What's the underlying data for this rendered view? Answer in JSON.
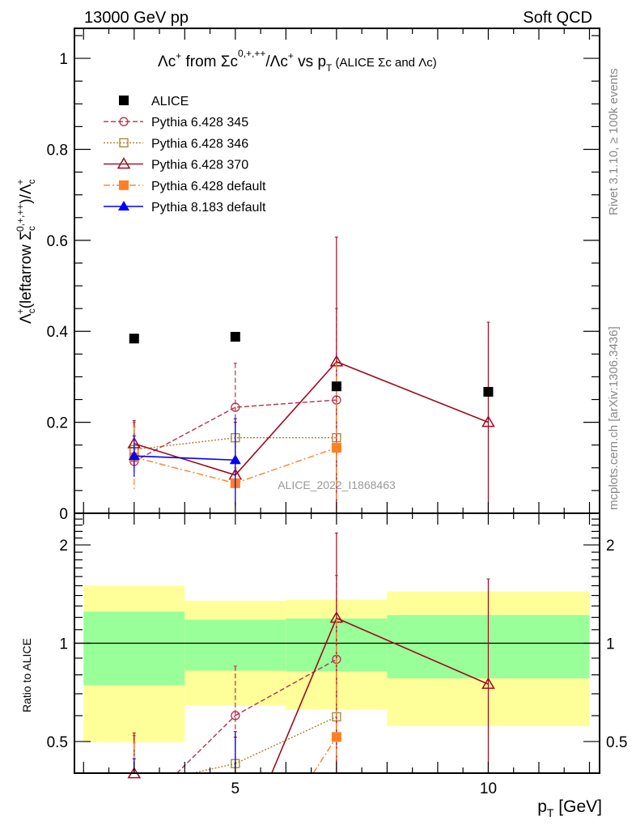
{
  "header": {
    "energy": "13000 GeV pp",
    "category": "Soft QCD"
  },
  "side": {
    "rivet": "Rivet 3.1.10, ≥ 100k events",
    "mcplots": "mcplots.cern.ch [arXiv:1306.3436]"
  },
  "watermark": "ALICE_2022_I1868463",
  "title_parts": {
    "a": "Λc",
    "a_sup": "+",
    "b": " from Σc",
    "b_sup": "0,+,++",
    "c": "/Λc",
    "c_sup": "+",
    "d": " vs p",
    "d_sub": "T",
    "e": " (ALICE Σc and Λc)"
  },
  "ylabel_parts": {
    "a": "Λ",
    "a_sup": "+",
    "a_sub": "c",
    "b": "(leftarrow Σ",
    "b_sup": "0,+,++",
    "b_sub": "c",
    "c": ")/Λ",
    "c_sup": "+",
    "c_sub": "c"
  },
  "chart_data": [
    {
      "type": "scatter",
      "panel": "main",
      "title": "Λc+ from Σc0,+,++/Λc+ vs pT (ALICE Σc and Λc)",
      "xlabel": "pT [GeV]",
      "ylabel": "Λc+(leftarrow Σc0,+,++)/Λc+",
      "xlim": [
        1.82,
        12.2
      ],
      "ylim": [
        0,
        1.066
      ],
      "yticks": [
        "0",
        "0.2",
        "0.4",
        "0.6",
        "0.8",
        "1"
      ],
      "legend_position": "top-left",
      "series": [
        {
          "name": "ALICE",
          "color": "#000000",
          "marker": "square-filled",
          "line": "none",
          "x": [
            3,
            5,
            7,
            10
          ],
          "y": [
            0.384,
            0.388,
            0.279,
            0.267
          ]
        },
        {
          "name": "Pythia 6.428 345",
          "color": "#b8304a",
          "marker": "circle-open",
          "line": "dashed",
          "x": [
            3,
            5,
            7
          ],
          "y": [
            0.114,
            0.233,
            0.249
          ],
          "err_lo": [
            0.09,
            0.14,
            0.0
          ],
          "err_hi": [
            0.2,
            0.33,
            0.45
          ]
        },
        {
          "name": "Pythia 6.428 346",
          "color": "#a8802f",
          "marker": "square-open",
          "line": "dotted",
          "x": [
            3,
            5,
            7
          ],
          "y": [
            0.14,
            0.166,
            0.166
          ],
          "err_lo": [
            0.11,
            0.12,
            0.0
          ],
          "err_hi": [
            0.17,
            0.2,
            0.33
          ]
        },
        {
          "name": "Pythia 6.428 370",
          "color": "#a00a1e",
          "marker": "triangle-open",
          "line": "solid",
          "x": [
            3,
            5,
            7,
            10
          ],
          "y": [
            0.153,
            0.084,
            0.333,
            0.2
          ],
          "err_lo": [
            0.1,
            0.02,
            0.0,
            0.0
          ],
          "err_hi": [
            0.204,
            0.2,
            0.607,
            0.42
          ]
        },
        {
          "name": "Pythia 6.428 default",
          "color": "#ff7f27",
          "marker": "square-filled",
          "line": "dashdot",
          "x": [
            3,
            5,
            7
          ],
          "y": [
            0.123,
            0.066,
            0.144
          ],
          "err_lo": [
            0.05,
            0.01,
            0.0
          ],
          "err_hi": [
            0.19,
            0.1,
            0.33
          ]
        },
        {
          "name": "Pythia 8.183 default",
          "color": "#0000ff",
          "marker": "triangle-filled",
          "line": "solid",
          "x": [
            3,
            5
          ],
          "y": [
            0.126,
            0.117
          ],
          "err_lo": [
            0.08,
            0.016
          ],
          "err_hi": [
            0.17,
            0.208
          ]
        }
      ]
    },
    {
      "type": "line",
      "panel": "ratio",
      "ylabel": "Ratio to ALICE",
      "xlabel": "pT [GeV]",
      "yscale": "log",
      "ylim": [
        0.4,
        2.5
      ],
      "yticks": [
        "0.5",
        "1",
        "2"
      ],
      "xticks": [
        "5",
        "10"
      ],
      "bins": [
        [
          2,
          4
        ],
        [
          4,
          6
        ],
        [
          6,
          8
        ],
        [
          8,
          12
        ]
      ],
      "band_inner": {
        "color": "#99ff99",
        "lo": [
          0.744,
          0.824,
          0.82,
          0.78
        ],
        "hi": [
          1.25,
          1.18,
          1.19,
          1.22
        ]
      },
      "band_outer": {
        "color": "#ffff99",
        "lo": [
          0.497,
          0.645,
          0.628,
          0.557
        ],
        "hi": [
          1.5,
          1.35,
          1.36,
          1.44
        ]
      }
    }
  ],
  "xaxis_title": {
    "p": "p",
    "sub": "T",
    "unit": " [GeV]"
  }
}
